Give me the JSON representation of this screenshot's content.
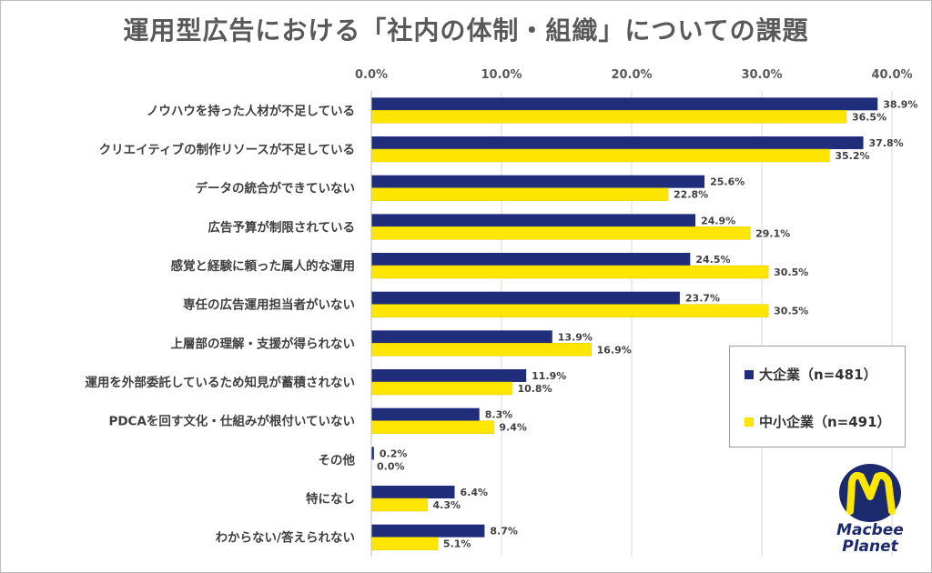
{
  "title": "運用型広告における「社内の体制・組織」についての課題",
  "colors": {
    "large": "#1f2d7b",
    "small": "#ffe600",
    "grid": "#d9d9d9",
    "text": "#404040"
  },
  "legend": {
    "large": "大企業（n=481）",
    "small": "中小企業（n=491）"
  },
  "logo": {
    "line1": "Macbee",
    "line2": "Planet"
  },
  "chart_data": {
    "type": "bar",
    "orientation": "horizontal",
    "xlim": [
      0,
      40
    ],
    "x_ticks": [
      "0.0%",
      "10.0%",
      "20.0%",
      "30.0%",
      "40.0%"
    ],
    "x_tick_values": [
      0,
      10,
      20,
      30,
      40
    ],
    "grid": true,
    "legend_position": "right",
    "categories": [
      "ノウハウを持った人材が不足している",
      "クリエイティブの制作リソースが不足している",
      "データの統合ができていない",
      "広告予算が制限されている",
      "感覚と経験に頼った属人的な運用",
      "専任の広告運用担当者がいない",
      "上層部の理解・支援が得られない",
      "運用を外部委託しているため知見が蓄積されない",
      "PDCAを回す文化・仕組みが根付いていない",
      "その他",
      "特になし",
      "わからない/答えられない"
    ],
    "series": [
      {
        "name": "大企業（n=481）",
        "values": [
          38.9,
          37.8,
          25.6,
          24.9,
          24.5,
          23.7,
          13.9,
          11.9,
          8.3,
          0.2,
          6.4,
          8.7
        ],
        "labels": [
          "38.9%",
          "37.8%",
          "25.6%",
          "24.9%",
          "24.5%",
          "23.7%",
          "13.9%",
          "11.9%",
          "8.3%",
          "0.2%",
          "6.4%",
          "8.7%"
        ]
      },
      {
        "name": "中小企業（n=491）",
        "values": [
          36.5,
          35.2,
          22.8,
          29.1,
          30.5,
          30.5,
          16.9,
          10.8,
          9.4,
          0.0,
          4.3,
          5.1
        ],
        "labels": [
          "36.5%",
          "35.2%",
          "22.8%",
          "29.1%",
          "30.5%",
          "30.5%",
          "16.9%",
          "10.8%",
          "9.4%",
          "0.0%",
          "4.3%",
          "5.1%"
        ]
      }
    ]
  }
}
